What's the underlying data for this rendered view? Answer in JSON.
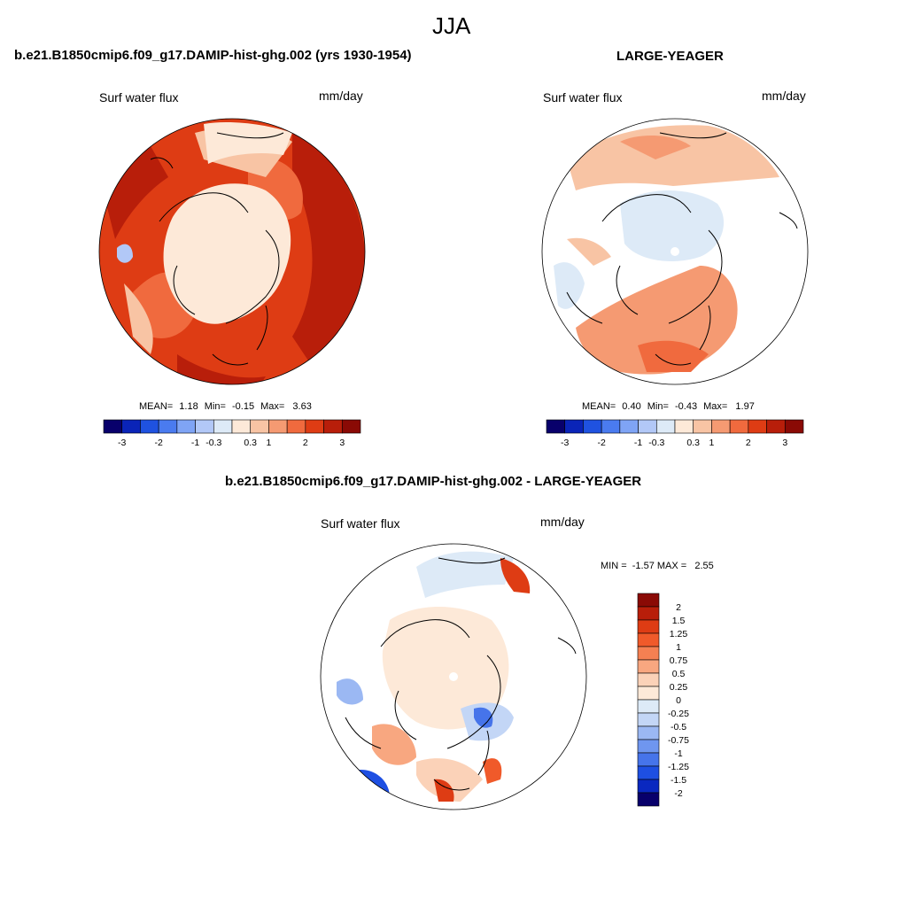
{
  "page": {
    "season": "JJA",
    "panel_a_title": "b.e21.B1850cmip6.f09_g17.DAMIP-hist-ghg.002 (yrs 1930-1954)",
    "panel_b_title": "LARGE-YEAGER",
    "diff_title": "b.e21.B1850cmip6.f09_g17.DAMIP-hist-ghg.002 - LARGE-YEAGER"
  },
  "colors": {
    "abs_scale": [
      "#08006b",
      "#0a24b8",
      "#1f52e0",
      "#4a7bef",
      "#7fa4f5",
      "#b2c8f7",
      "#ddeaf7",
      "#fde9d8",
      "#f8c4a4",
      "#f59a72",
      "#f06a3e",
      "#de3c14",
      "#b81e0a",
      "#8a0a05"
    ],
    "diff_scale": [
      "#8a0a05",
      "#b81e0a",
      "#de3c14",
      "#f05a2a",
      "#f58052",
      "#f8a780",
      "#fbd2b8",
      "#fde9d8",
      "#ddeaf7",
      "#c3d6f6",
      "#9bb8f3",
      "#6f96ef",
      "#4674ea",
      "#1e4fe2",
      "#0a28c0",
      "#08006b"
    ],
    "land_fill": "#fde9d8",
    "coast": "#000000"
  },
  "maps": [
    {
      "label": "Surf water flux",
      "units": "mm/day",
      "stats": {
        "mean_label": "MEAN=",
        "mean": "1.18",
        "min_label": "Min=",
        "min": "-0.15",
        "max_label": "Max=",
        "max": "3.63"
      },
      "colorbar": {
        "ticks": [
          "-3",
          "-2",
          "-1",
          "-0.3",
          "0.3",
          "1",
          "2",
          "3"
        ]
      },
      "style": "warm"
    },
    {
      "label": "Surf water flux",
      "units": "mm/day",
      "stats": {
        "mean_label": "MEAN=",
        "mean": "0.40",
        "min_label": "Min=",
        "min": "-0.43",
        "max_label": "Max=",
        "max": "1.97"
      },
      "colorbar": {
        "ticks": [
          "-3",
          "-2",
          "-1",
          "-0.3",
          "0.3",
          "1",
          "2",
          "3"
        ]
      },
      "style": "mixed"
    },
    {
      "label": "Surf water flux",
      "units": "mm/day",
      "minmax": {
        "text": "MIN =  -1.57 MAX =   2.55"
      },
      "colorbar": {
        "ticks": [
          "2",
          "1.5",
          "1.25",
          "1",
          "0.75",
          "0.5",
          "0.25",
          "0",
          "-0.25",
          "-0.5",
          "-0.75",
          "-1",
          "-1.25",
          "-1.5",
          "-2"
        ]
      },
      "style": "diff"
    }
  ]
}
